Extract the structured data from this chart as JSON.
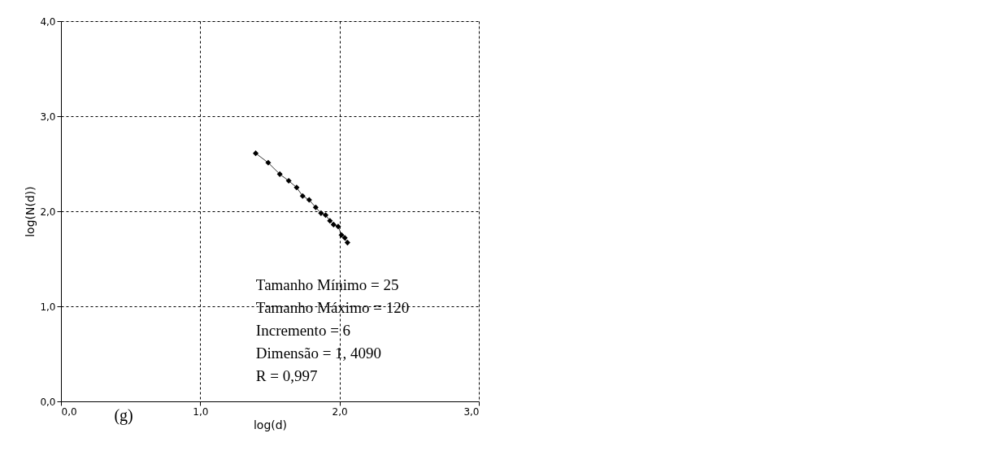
{
  "chart_data": {
    "type": "line",
    "xlabel": "log(d)",
    "ylabel": "log(N(d))",
    "x": [
      1.398,
      1.488,
      1.571,
      1.635,
      1.692,
      1.735,
      1.782,
      1.829,
      1.867,
      1.9,
      1.931,
      1.957,
      1.99,
      2.014,
      2.038,
      2.057
    ],
    "series": [
      {
        "color": "#000000",
        "values": [
          2.61,
          2.51,
          2.39,
          2.32,
          2.25,
          2.16,
          2.12,
          2.04,
          1.98,
          1.96,
          1.9,
          1.86,
          1.84,
          1.75,
          1.72,
          1.67
        ]
      }
    ],
    "xlim": [
      0,
      3
    ],
    "ylim": [
      0,
      4
    ],
    "xticks": [
      {
        "value": 0,
        "label": "0,0"
      },
      {
        "value": 1,
        "label": "1,0"
      },
      {
        "value": 2,
        "label": "2,0"
      },
      {
        "value": 3,
        "label": "3,0"
      }
    ],
    "yticks": [
      {
        "value": 0,
        "label": "0,0"
      },
      {
        "value": 1,
        "label": "1,0"
      },
      {
        "value": 2,
        "label": "2,0"
      },
      {
        "value": 3,
        "label": "3,0"
      },
      {
        "value": 4,
        "label": "4,0"
      }
    ],
    "grid": true,
    "marker": "diamond",
    "line_style": "solid",
    "annotations": [
      "Tamanho Mínimo = 25",
      "Tamanho Máximo = 120",
      "Incremento = 6",
      "Dimensão = 1, 4090",
      "R = 0,997",
      "(g)"
    ]
  }
}
